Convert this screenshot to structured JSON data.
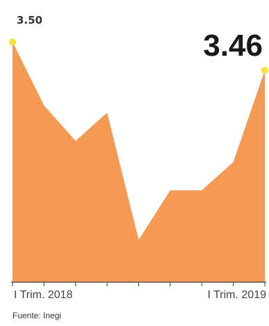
{
  "chart_data": {
    "type": "area",
    "title": "",
    "xlabel": "",
    "ylabel": "",
    "x": [
      "I Trim. 2018",
      "",
      "",
      "",
      "",
      "",
      "",
      "",
      "I Trim. 2019"
    ],
    "values": [
      3.5,
      3.41,
      3.36,
      3.4,
      3.22,
      3.29,
      3.29,
      3.33,
      3.46
    ],
    "ylim": [
      3.16,
      3.52
    ],
    "tick_labels": [
      "I Trim. 2018",
      "I Trim. 2019"
    ],
    "annotations": {
      "first": "3.50",
      "last": "3.46"
    },
    "source": "Fuente: Inegi",
    "grid": false,
    "legend": "none"
  },
  "colors": {
    "fill": "#F59A55",
    "marker": "#F5E23C",
    "axis": "#555555"
  }
}
